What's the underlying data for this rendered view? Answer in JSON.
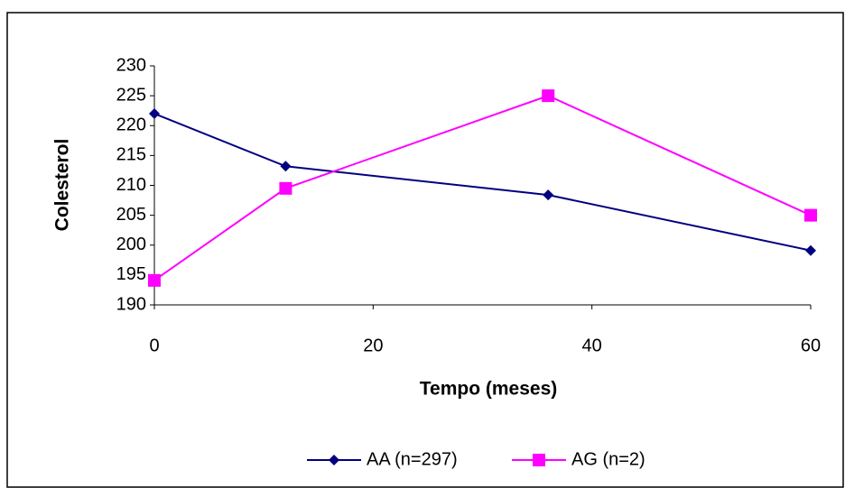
{
  "chart_data": {
    "type": "line",
    "x_label": "Tempo (meses)",
    "y_label": "Colesterol",
    "x": [
      0,
      12,
      36,
      60
    ],
    "series": [
      {
        "name": "AA (n=297)",
        "color": "#000080",
        "marker": "diamond",
        "values": [
          222,
          213.2,
          208.4,
          199.1
        ]
      },
      {
        "name": "AG (n=2)",
        "color": "#ff00ff",
        "marker": "square",
        "values": [
          194.1,
          209.5,
          225,
          205
        ]
      }
    ],
    "xlim": [
      0,
      60
    ],
    "xticks": [
      0,
      20,
      40,
      60
    ],
    "ylim": [
      190,
      230
    ],
    "yticks": [
      190,
      195,
      200,
      205,
      210,
      215,
      220,
      225,
      230
    ],
    "legend": "bottom"
  }
}
